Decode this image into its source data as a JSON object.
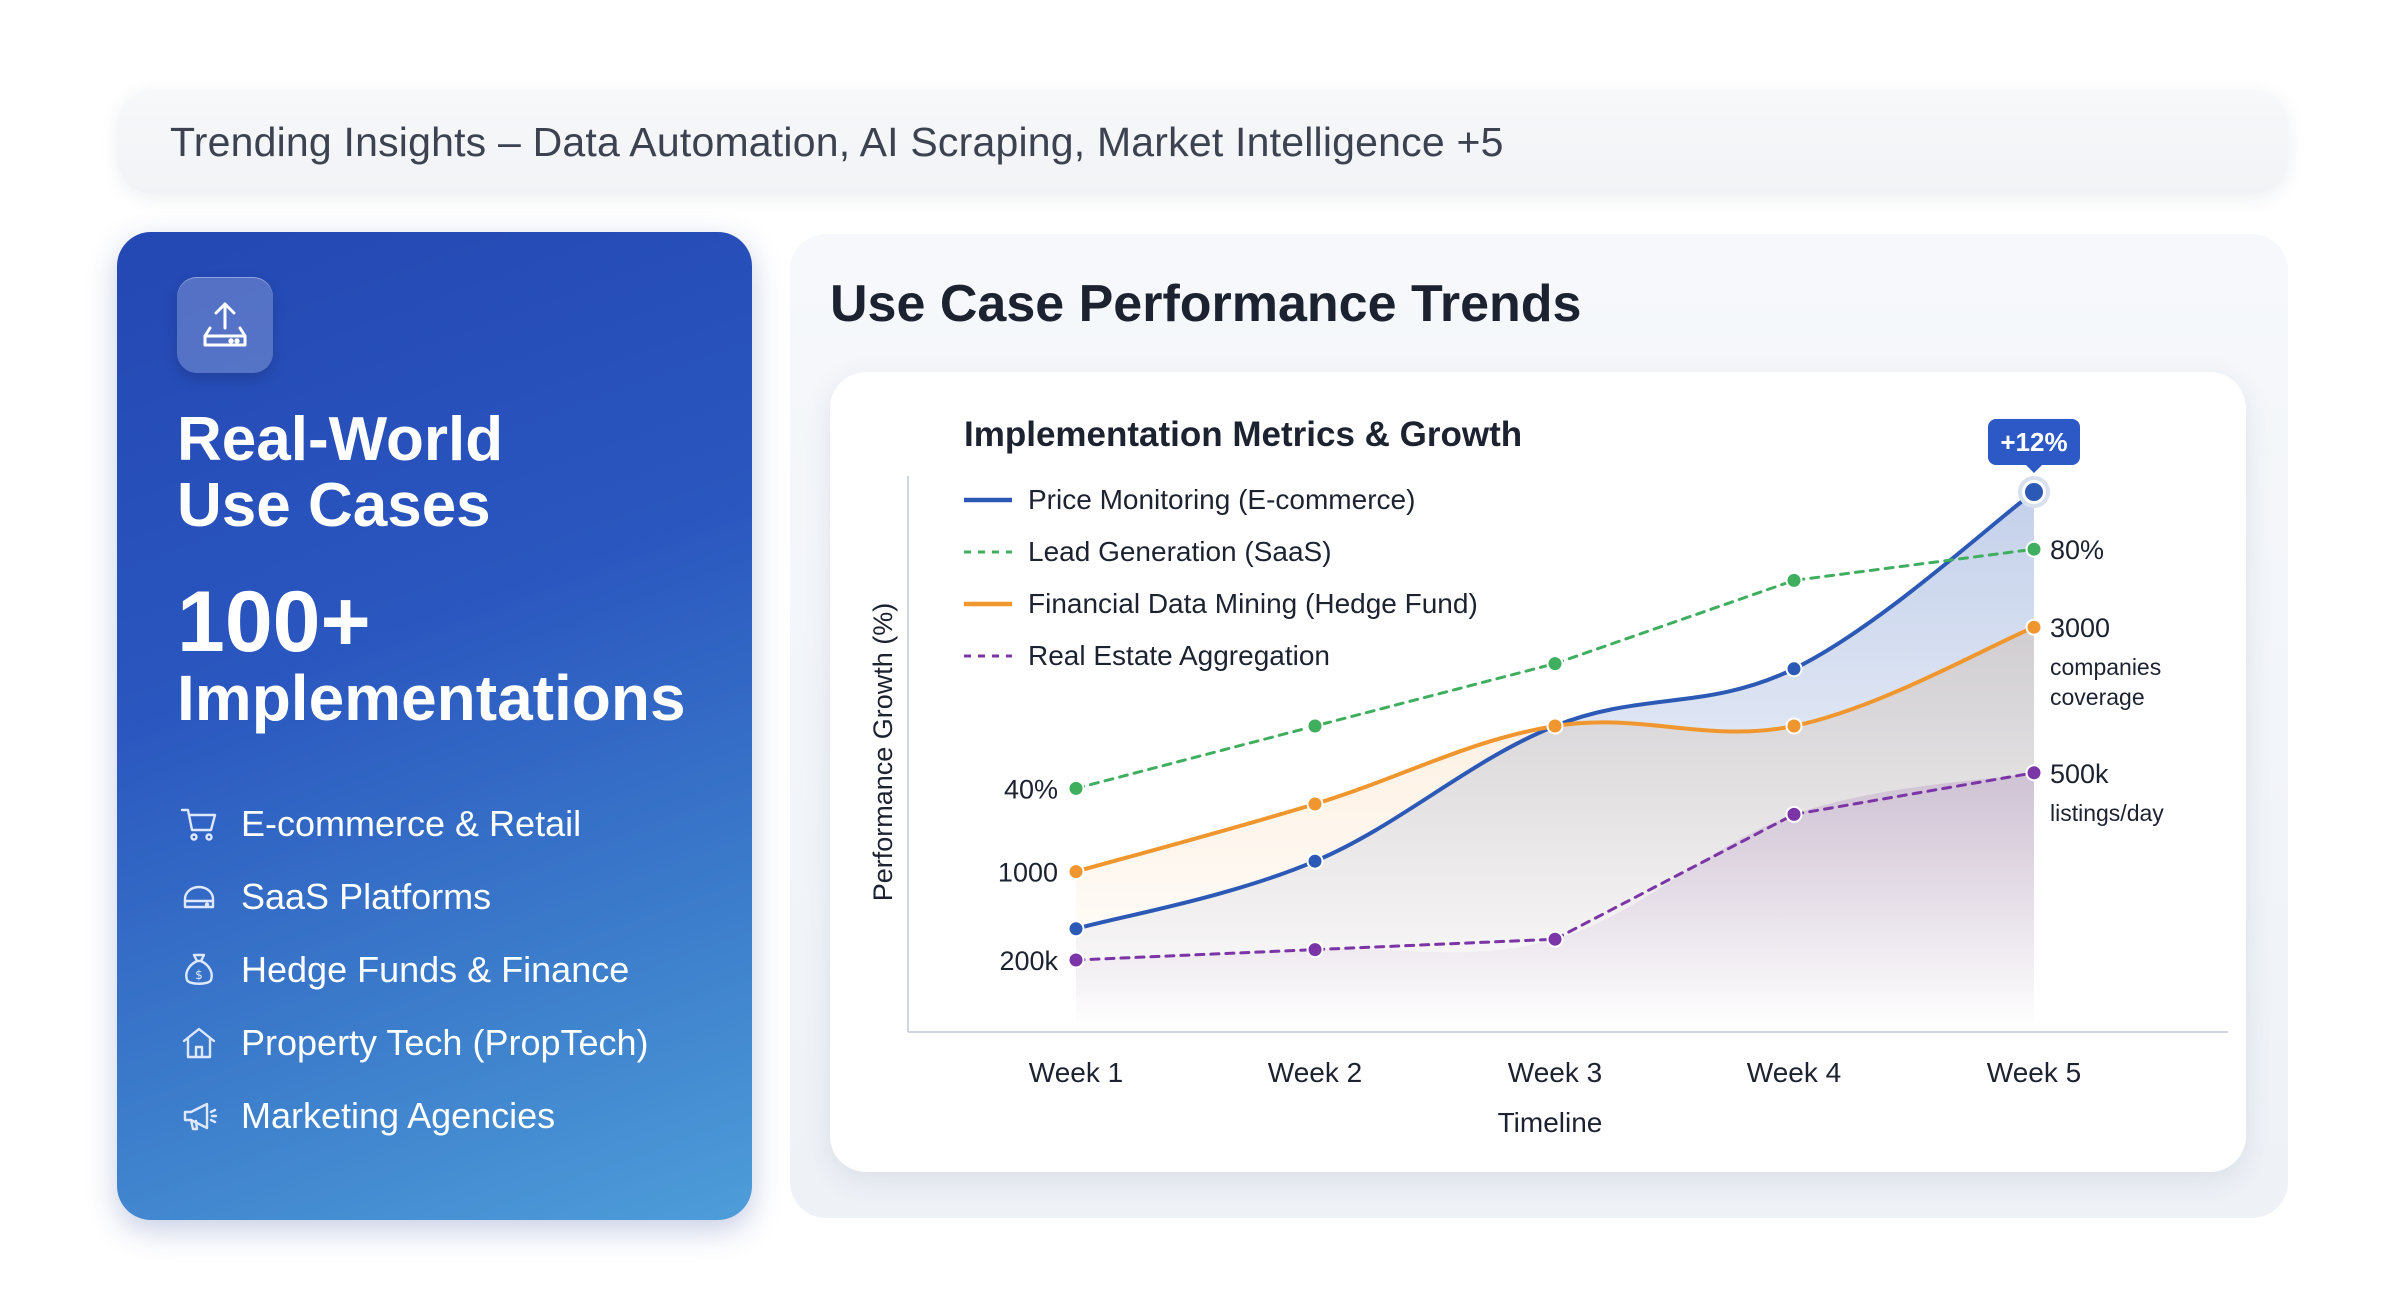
{
  "header": {
    "title": "Trending Insights – Data Automation, AI Scraping, Market Intelligence +5"
  },
  "left_card": {
    "icon": "upload-tray-icon",
    "title_line1": "Real-World",
    "title_line2": "Use Cases",
    "big_number": "100+",
    "big_label": "Implementations",
    "items": [
      {
        "label": "E-commerce & Retail",
        "icon": "shopping-cart-icon"
      },
      {
        "label": "SaaS Platforms",
        "icon": "cloud-icon"
      },
      {
        "label": "Hedge Funds & Finance",
        "icon": "money-bag-icon"
      },
      {
        "label": "Property Tech (PropTech)",
        "icon": "house-icon"
      },
      {
        "label": "Marketing Agencies",
        "icon": "megaphone-icon"
      }
    ]
  },
  "panel": {
    "title": "Use Case Performance Trends"
  },
  "colors": {
    "price": "#2c59b5",
    "lead": "#3fae5e",
    "financial": "#f0962e",
    "realestate": "#7b35a6"
  },
  "chart_data": {
    "type": "line",
    "title": "Implementation Metrics & Growth",
    "xlabel": "Timeline",
    "ylabel": "Performance Growth (%)",
    "ylim": [
      0,
      100
    ],
    "categories": [
      "Week 1",
      "Week 2",
      "Week 3",
      "Week 4",
      "Week 5"
    ],
    "series": [
      {
        "name": "Price Monitoring (E-commerce)",
        "key": "price",
        "style": "solid",
        "values": [
          16,
          29,
          55,
          66,
          100
        ]
      },
      {
        "name": "Lead Generation (SaaS)",
        "key": "lead",
        "style": "dashed",
        "values": [
          43,
          55,
          67,
          83,
          89
        ]
      },
      {
        "name": "Financial Data Mining (Hedge Fund)",
        "key": "financial",
        "style": "solid",
        "values": [
          27,
          40,
          55,
          55,
          74
        ]
      },
      {
        "name": "Real Estate Aggregation",
        "key": "realestate",
        "style": "dashed",
        "values": [
          10,
          12,
          14,
          38,
          46
        ]
      }
    ],
    "left_annotations": [
      {
        "text": "40%",
        "series": "lead"
      },
      {
        "text": "1000",
        "series": "financial"
      },
      {
        "text": "200k",
        "series": "realestate"
      }
    ],
    "right_annotations": [
      {
        "series": "lead",
        "lines": [
          "80%"
        ]
      },
      {
        "series": "financial",
        "lines": [
          "3000",
          "companies",
          "coverage"
        ]
      },
      {
        "series": "realestate",
        "lines": [
          "500k",
          "listings/day"
        ]
      }
    ],
    "badge": {
      "text": "+12%",
      "series": "price",
      "index": 4
    }
  }
}
